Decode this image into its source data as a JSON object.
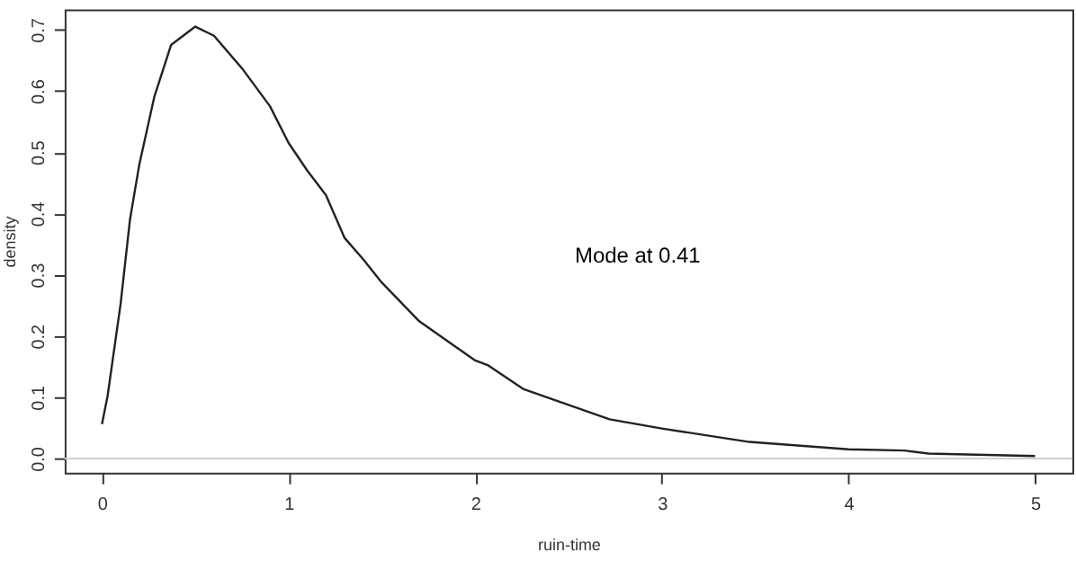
{
  "chart_data": {
    "type": "line",
    "xlabel": "ruin-time",
    "ylabel": "density",
    "x": [
      0,
      0.03,
      0.1,
      0.15,
      0.2,
      0.28,
      0.37,
      0.5,
      0.6,
      0.75,
      0.9,
      1.0,
      1.1,
      1.2,
      1.3,
      1.4,
      1.5,
      1.7,
      2.0,
      2.07,
      2.26,
      2.72,
      3.0,
      3.47,
      4.0,
      4.3,
      4.43,
      5.0
    ],
    "series": [
      {
        "color": "#222222",
        "values": [
          0.056,
          0.102,
          0.253,
          0.39,
          0.48,
          0.59,
          0.675,
          0.705,
          0.69,
          0.637,
          0.575,
          0.515,
          0.47,
          0.43,
          0.36,
          0.325,
          0.287,
          0.224,
          0.16,
          0.152,
          0.113,
          0.064,
          0.049,
          0.027,
          0.015,
          0.013,
          0.008,
          0.004
        ]
      }
    ],
    "xlim": [
      -0.2,
      5.2
    ],
    "xticks": [
      0,
      1,
      2,
      3,
      4,
      5
    ],
    "ylim": [
      -0.023,
      0.733
    ],
    "yticks": [
      {
        "value": 0,
        "label": "0.0"
      },
      {
        "value": 0.1,
        "label": "0.1"
      },
      {
        "value": 0.2,
        "label": "0.2"
      },
      {
        "value": 0.3,
        "label": "0.3"
      },
      {
        "value": 0.4,
        "label": "0.4"
      },
      {
        "value": 0.5,
        "label": "0.5"
      },
      {
        "value": 0.6,
        "label": "0.6"
      },
      {
        "value": 0.7,
        "label": "0.7"
      }
    ],
    "ref_lines": [
      {
        "axis": "y",
        "value": 0,
        "color": "#d0d0d0"
      }
    ],
    "annotations": [
      "Mode at 0.41"
    ],
    "grid": false,
    "marker": "none",
    "line_style": "solid"
  }
}
